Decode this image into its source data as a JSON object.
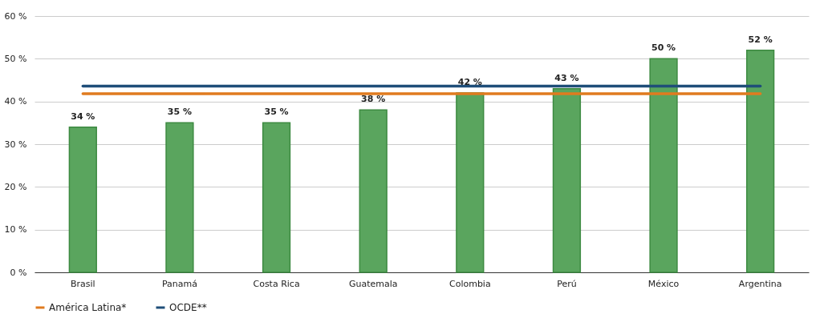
{
  "chart_data": {
    "type": "bar",
    "categories": [
      "Brasil",
      "Panamá",
      "Costa Rica",
      "Guatemala",
      "Colombia",
      "Perú",
      "México",
      "Argentina"
    ],
    "series": [
      {
        "color": "#5aa55e",
        "values": [
          34,
          35,
          35,
          38,
          42,
          43,
          50,
          52
        ],
        "value_labels": [
          "34 %",
          "35 %",
          "35 %",
          "38 %",
          "42 %",
          "43 %",
          "50 %",
          "52 %"
        ]
      },
      {
        "type": "line",
        "name": "América Latina*",
        "color": "#e07b1f",
        "values": [
          41.8,
          41.8,
          41.8,
          41.8,
          41.8,
          41.8,
          41.8,
          41.8
        ]
      },
      {
        "type": "line",
        "name": "OCDE**",
        "color": "#1f4e79",
        "values": [
          43.6,
          43.6,
          43.6,
          43.6,
          43.6,
          43.6,
          43.6,
          43.6
        ]
      }
    ],
    "ylim": [
      0,
      60
    ],
    "yticks": [
      {
        "value": 0,
        "label": "0 %"
      },
      {
        "value": 10,
        "label": "10 %"
      },
      {
        "value": 20,
        "label": "20 %"
      },
      {
        "value": 30,
        "label": "30 %"
      },
      {
        "value": 40,
        "label": "40 %"
      },
      {
        "value": 50,
        "label": "50 %"
      },
      {
        "value": 60,
        "label": "60 %"
      }
    ],
    "grid": "y",
    "legend": "bottom"
  }
}
